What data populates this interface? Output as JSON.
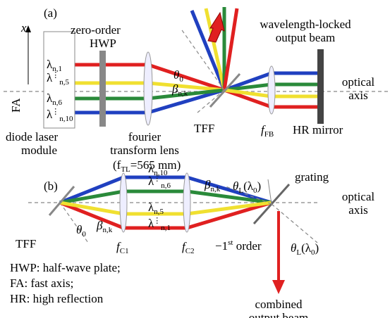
{
  "panel_a": {
    "label": "(a)",
    "axis_x": "x",
    "axis_fa": "FA",
    "wavelengths": [
      {
        "symbol": "λ",
        "sub": "n,1"
      },
      {
        "symbol": "λ",
        "sub": "n,5"
      },
      {
        "symbol": "λ",
        "sub": "n,6"
      },
      {
        "symbol": "λ",
        "sub": "n,10"
      }
    ],
    "dots": "⋮",
    "hwp": [
      "zero-order",
      "HWP"
    ],
    "lens": [
      "fourier",
      "transform lens"
    ],
    "focal": {
      "open": "(f",
      "sub": "TL",
      "close": "=565 mm)"
    },
    "theta": {
      "symbol": "θ",
      "sub": "0"
    },
    "beta": {
      "symbol": "β",
      "sub": "n,k"
    },
    "tff": "TFF",
    "output": [
      "wavelength-locked",
      "output beam"
    ],
    "optical_axis": [
      "optical",
      "axis"
    ],
    "ffb": {
      "symbol": "f",
      "sub": "FB"
    },
    "hr_mirror": "HR mirror",
    "diode": [
      "diode laser",
      "module"
    ]
  },
  "panel_b": {
    "label": "(b)",
    "wavelengths": [
      {
        "symbol": "λ",
        "sub": "n,10"
      },
      {
        "symbol": "λ",
        "sub": "n,6"
      },
      {
        "symbol": "λ",
        "sub": "n,5"
      },
      {
        "symbol": "λ",
        "sub": "n,1"
      }
    ],
    "dots": "⋮",
    "beta_left": {
      "symbol": "β",
      "sub": "n,k"
    },
    "beta_right": {
      "symbol": "β",
      "sub": "n,k"
    },
    "theta": {
      "symbol": "θ",
      "sub": "0"
    },
    "tff": "TFF",
    "fc1": {
      "symbol": "f",
      "sub": "C1"
    },
    "fc2": {
      "symbol": "f",
      "sub": "C2"
    },
    "grating": "grating",
    "optical_axis": [
      "optical",
      "axis"
    ],
    "theta_l_top": {
      "symbol": "θ",
      "sub": "L",
      "arg": "(λ",
      "arg_sub": "0",
      "close": ")"
    },
    "theta_l_bottom": {
      "symbol": "θ",
      "sub": "L",
      "arg": "(λ",
      "arg_sub": "0",
      "close": ")"
    },
    "order": {
      "main": "−1",
      "sup": "st",
      "rest": " order"
    },
    "output": [
      "combined",
      "output beam"
    ]
  },
  "legend": [
    "HWP: half-wave plate;",
    "FA: fast axis;",
    "HR: high reflection"
  ]
}
